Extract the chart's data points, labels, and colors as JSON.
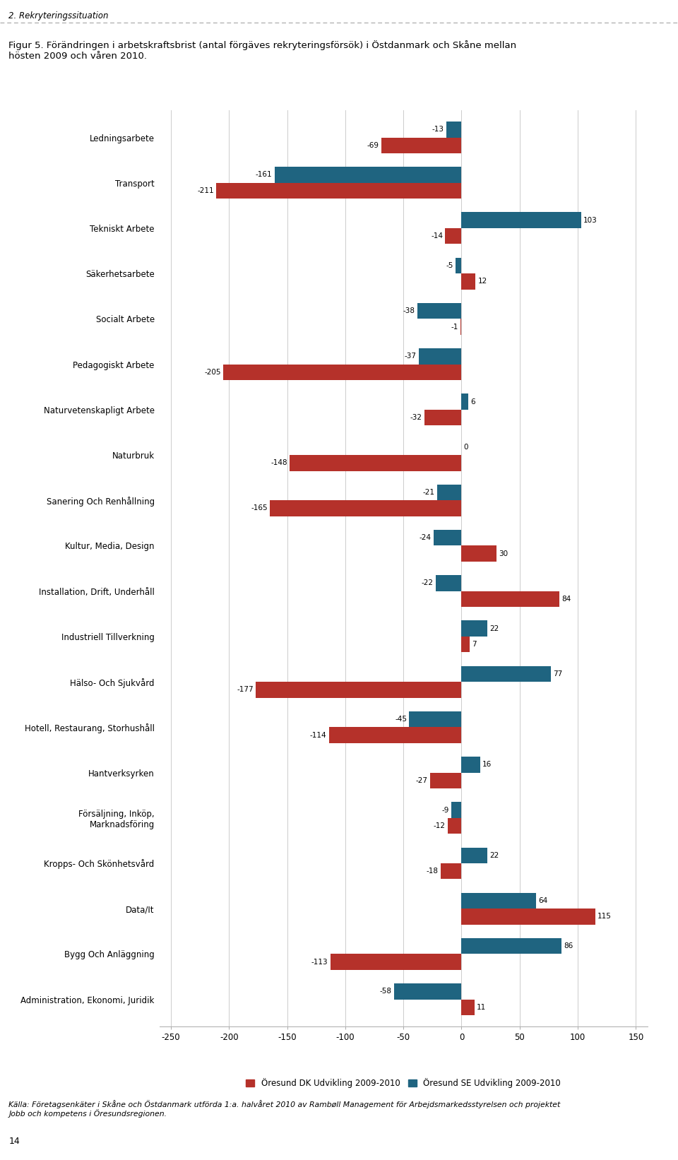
{
  "categories": [
    "Ledningsarbete",
    "Transport",
    "Tekniskt Arbete",
    "Säkerhetsarbete",
    "Socialt Arbete",
    "Pedagogiskt Arbete",
    "Naturvetenskapligt Arbete",
    "Naturbruk",
    "Sanering Och Renhållning",
    "Kultur, Media, Design",
    "Installation, Drift, Underhåll",
    "Industriell Tillverkning",
    "Hälso- Och Sjukvård",
    "Hotell, Restaurang, Storhushåll",
    "Hantverksyrken",
    "Försäljning, Inköp,\nMarknadsföring",
    "Kropps- Och Skönhetsvård",
    "Data/It",
    "Bygg Och Anläggning",
    "Administration, Ekonomi, Juridik"
  ],
  "dk_values": [
    -69,
    -211,
    -14,
    12,
    -1,
    -205,
    -32,
    -148,
    -165,
    30,
    84,
    7,
    -177,
    -114,
    -27,
    -12,
    -18,
    115,
    -113,
    11
  ],
  "se_values": [
    -13,
    -161,
    103,
    -5,
    -38,
    -37,
    6,
    0,
    -21,
    -24,
    -22,
    22,
    77,
    -45,
    16,
    -9,
    22,
    64,
    86,
    -58
  ],
  "dk_color": "#b5312a",
  "se_color": "#1f6480",
  "xlim": [
    -260,
    160
  ],
  "xticks": [
    -250,
    -200,
    -150,
    -100,
    -50,
    0,
    50,
    100,
    150
  ],
  "bar_height": 0.35,
  "title": "Figur 5. Förändringen i arbetskraftsbrist (antal förgäves rekryteringsförsök) i Östdanmark och Skåne mellan\nhösten 2009 och våren 2010.",
  "legend_dk": "Öresund DK Udvikling 2009-2010",
  "legend_se": "Öresund SE Udvikling 2009-2010",
  "caption": "Källa: Företagsenkäter i Skåne och Östdanmark utförda 1:a. halvåret 2010 av Rambøll Management för Arbejdsmarkedsstyrelsen och projektet\nJobb och kompetens i Öresundsregionen.",
  "section_label": "2. Rekryteringssituation",
  "page_number": "14",
  "bg_color": "#ffffff",
  "grid_color": "#cccccc",
  "font_size_labels": 8.5,
  "font_size_ticks": 8.5,
  "font_size_title": 9.5,
  "font_size_values": 7.5,
  "font_size_legend": 8.5
}
